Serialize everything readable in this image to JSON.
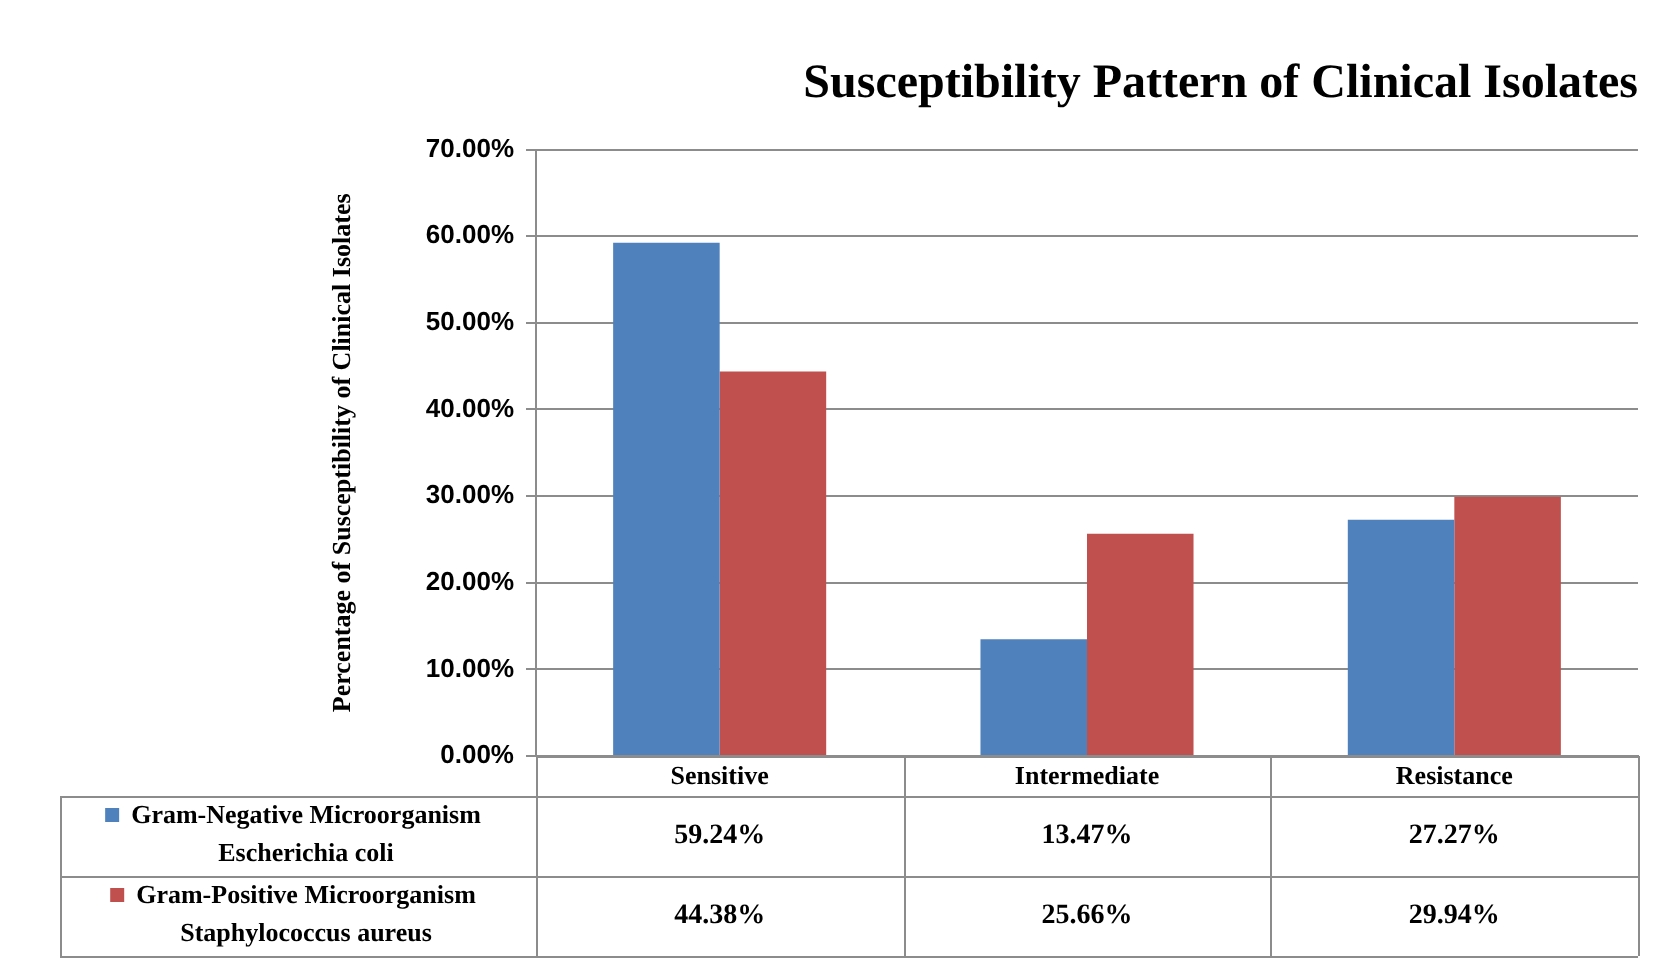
{
  "chart_data": {
    "type": "bar",
    "title": "Susceptibility Pattern of Clinical Isolates",
    "ylabel": "Percentage of Susceptibility of Clinical Isolates",
    "categories": [
      "Sensitive",
      "Intermediate",
      "Resistance"
    ],
    "series": [
      {
        "name": "Gram-Negative Microorganism Escherichia coli",
        "color": "#4f81bd",
        "values": [
          59.24,
          13.47,
          27.27
        ],
        "value_labels": [
          "59.24%",
          "13.47%",
          "27.27%"
        ]
      },
      {
        "name": "Gram-Positive Microorganism Staphylococcus aureus",
        "color": "#c0504d",
        "values": [
          44.38,
          25.66,
          29.94
        ],
        "value_labels": [
          "44.38%",
          "25.66%",
          "29.94%"
        ]
      }
    ],
    "ylim": [
      0,
      70
    ],
    "yticks": [
      {
        "value": 0,
        "label": "0.00%"
      },
      {
        "value": 10,
        "label": "10.00%"
      },
      {
        "value": 20,
        "label": "20.00%"
      },
      {
        "value": 30,
        "label": "30.00%"
      },
      {
        "value": 40,
        "label": "40.00%"
      },
      {
        "value": 50,
        "label": "50.00%"
      },
      {
        "value": 60,
        "label": "60.00%"
      },
      {
        "value": 70,
        "label": "70.00%"
      }
    ],
    "grid": "y",
    "legend": "bottom"
  }
}
